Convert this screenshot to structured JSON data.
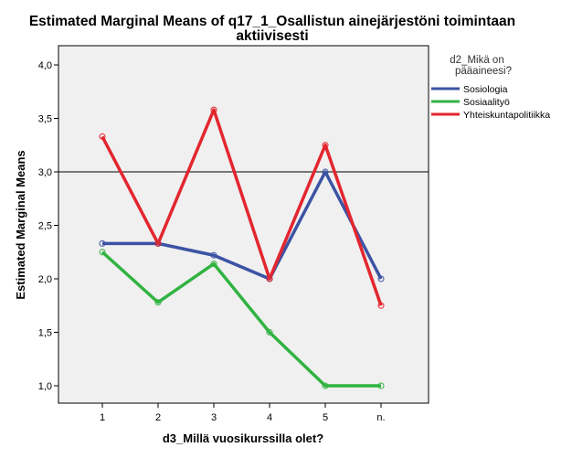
{
  "chart_data": {
    "type": "line",
    "title_line1": "Estimated Marginal Means of q17_1_Osallistun ainejärjestöni toimintaan",
    "title_line2": "aktiivisesti",
    "xlabel": "d3_Millä vuosikurssilla olet?",
    "ylabel": "Estimated Marginal Means",
    "categories": [
      "1",
      "2",
      "3",
      "4",
      "5",
      "n."
    ],
    "ylim": [
      0.85,
      4.2
    ],
    "yticks": [
      "1,0",
      "1,5",
      "2,0",
      "2,5",
      "3,0",
      "3,5",
      "4,0"
    ],
    "ytick_values": [
      1.0,
      1.5,
      2.0,
      2.5,
      3.0,
      3.5,
      4.0
    ],
    "reference_line": 3.0,
    "legend_title_line1": "d2_Mikä on",
    "legend_title_line2": "pääaineesi?",
    "legend_position": "right",
    "plot_background": "#f0f0f0",
    "series": [
      {
        "name": "Sosiologia",
        "color": "#3c53a4",
        "values": [
          2.33,
          2.33,
          2.22,
          2.0,
          3.0,
          2.0
        ]
      },
      {
        "name": "Sosiaalityö",
        "color": "#31b341",
        "values": [
          2.25,
          1.78,
          2.14,
          1.5,
          1.0,
          1.0
        ]
      },
      {
        "name": "Yhteiskuntapolitiikka",
        "color": "#e3262f",
        "values": [
          3.33,
          2.33,
          3.58,
          2.0,
          3.25,
          1.75
        ]
      }
    ]
  }
}
